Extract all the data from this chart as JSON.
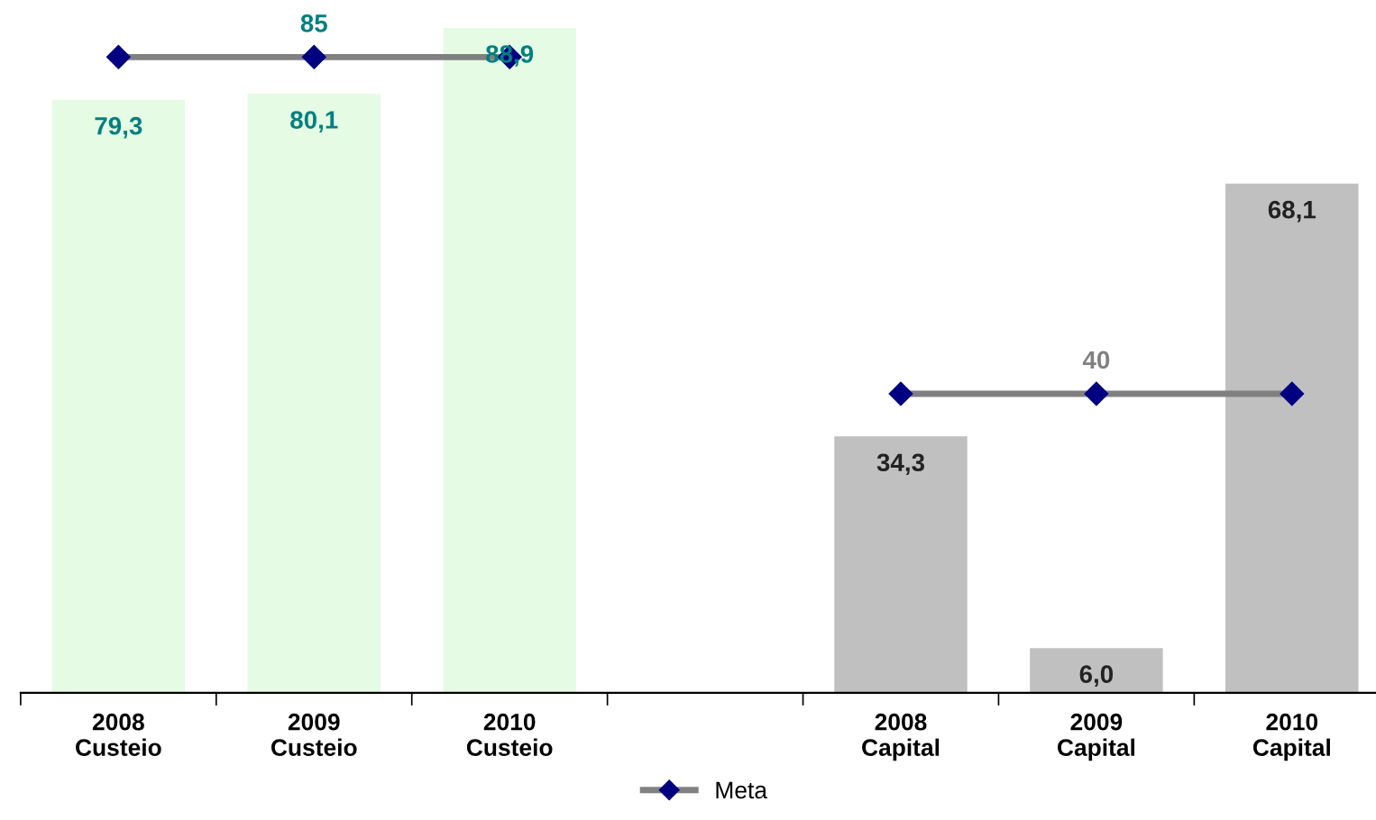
{
  "chart_data": {
    "type": "bar",
    "categories": [
      "2008\nCusteio",
      "2009\nCusteio",
      "2010\nCusteio",
      null,
      "2008\nCapital",
      "2009\nCapital",
      "2010\nCapital"
    ],
    "series": [
      {
        "colors": [
          "#e6fbe3",
          "#e6fbe3",
          "#e6fbe3",
          null,
          "#c0c0c0",
          "#c0c0c0",
          "#c0c0c0"
        ],
        "values": [
          79.3,
          80.1,
          88.9,
          null,
          34.3,
          6.0,
          68.1
        ],
        "value_labels": [
          "79,3",
          "80,1",
          "88,9",
          null,
          "34,3",
          "6,0",
          "68,1"
        ]
      },
      {
        "type": "line",
        "name": "Meta",
        "color": "#808080",
        "values": [
          85,
          85,
          85,
          null,
          40,
          40,
          40
        ],
        "value_labels": [
          null,
          "85",
          null,
          null,
          null,
          "40",
          null
        ],
        "marker": "diamond"
      }
    ],
    "legend": "bottom",
    "grid": false
  }
}
